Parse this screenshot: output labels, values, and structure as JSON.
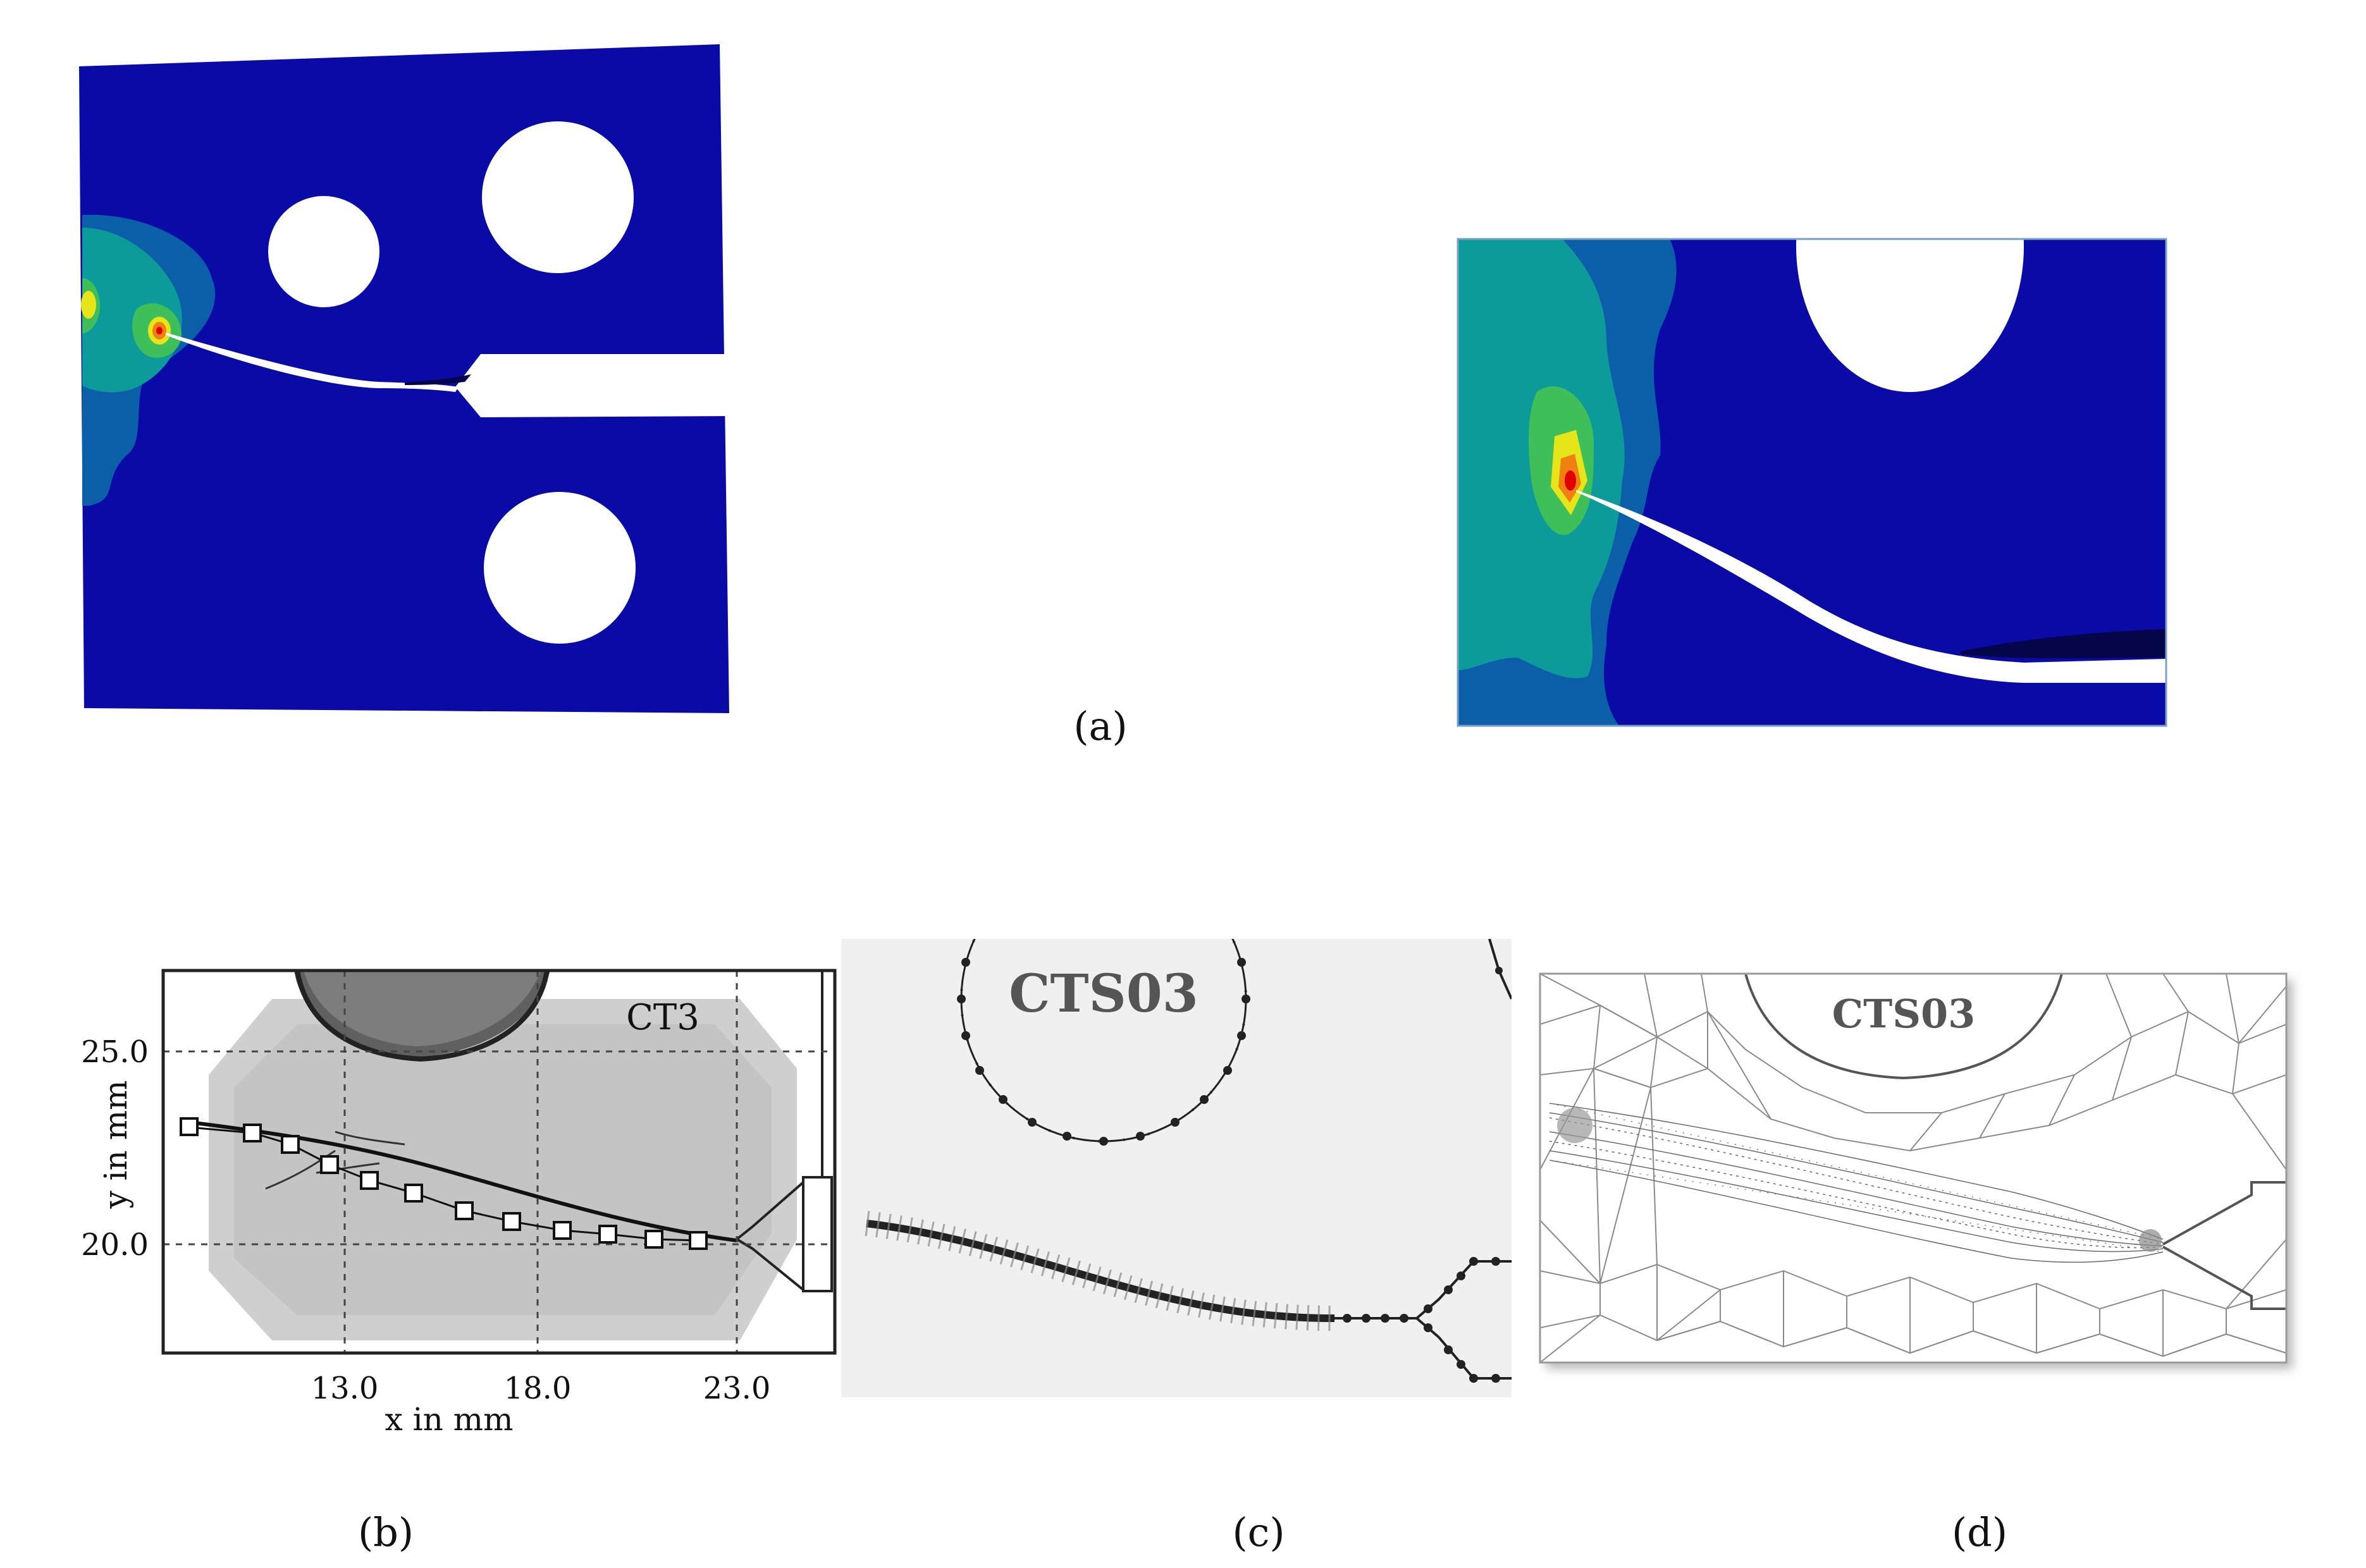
{
  "captions": {
    "a": "(a)",
    "b": "(b)",
    "c": "(c)",
    "d": "(d)"
  },
  "panel_b": {
    "label": "CT3",
    "xlabel": "x in mm",
    "ylabel": "y in mm",
    "xticks": [
      "13.0",
      "18.0",
      "23.0"
    ],
    "yticks": [
      "25.0",
      "20.0"
    ]
  },
  "panel_c": {
    "label": "CTS03"
  },
  "panel_d": {
    "label": "CTS03"
  },
  "colors": {
    "field_background": "#0a0aa6",
    "contour_low": "#0a5fa8",
    "contour_mid": "#0c9a9a",
    "contour_green": "#3fbf5a",
    "contour_yellow": "#e5e51a",
    "contour_orange": "#f08010",
    "contour_red": "#e00000"
  }
}
